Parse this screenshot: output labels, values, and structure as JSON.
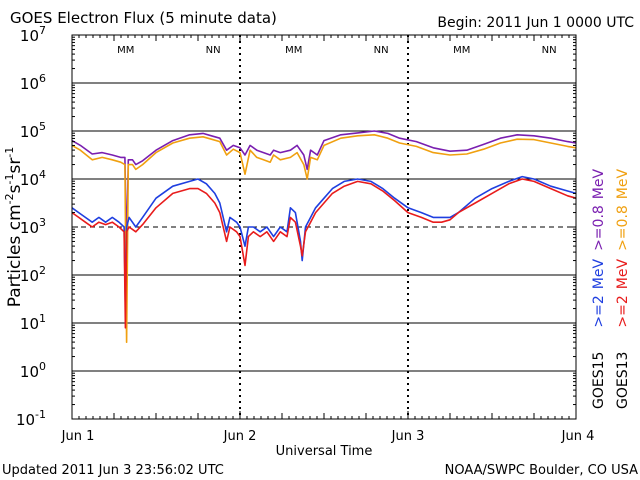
{
  "chart_data": {
    "type": "line",
    "title": "GOES Electron Flux (5 minute data)",
    "begin_label": "Begin: 2011 Jun 1 0000 UTC",
    "xlabel": "Universal Time",
    "ylabel": "Particles cm-2s-1sr-1",
    "ylabel_parts": [
      "Particles cm",
      "-2",
      "s",
      "-1",
      "sr",
      "-1"
    ],
    "updated": "Updated 2011 Jun  3 23:56:02 UTC",
    "credit": "NOAA/SWPC Boulder, CO USA",
    "x_unit": "days since 2011 Jun 1 00:00 UTC",
    "xlim": [
      0,
      3
    ],
    "ylim_log10": [
      -1,
      7
    ],
    "y_ticks": [
      {
        "exp": 7,
        "base": "10",
        "sup": "7"
      },
      {
        "exp": 6,
        "base": "10",
        "sup": "6"
      },
      {
        "exp": 5,
        "base": "10",
        "sup": "5"
      },
      {
        "exp": 4,
        "base": "10",
        "sup": "4"
      },
      {
        "exp": 3,
        "base": "10",
        "sup": "3"
      },
      {
        "exp": 2,
        "base": "10",
        "sup": "2"
      },
      {
        "exp": 1,
        "base": "10",
        "sup": "1"
      },
      {
        "exp": 0,
        "base": "10",
        "sup": "0"
      },
      {
        "exp": -1,
        "base": "10",
        "sup": "-1"
      }
    ],
    "x_ticks": [
      {
        "x": 0,
        "label": "Jun 1"
      },
      {
        "x": 1,
        "label": "Jun 2"
      },
      {
        "x": 2,
        "label": "Jun 3"
      },
      {
        "x": 3,
        "label": "Jun 4"
      }
    ],
    "threshold_log10": 3,
    "mn_markers": [
      {
        "x": 0.32,
        "label": "MM"
      },
      {
        "x": 0.84,
        "label": "NN"
      },
      {
        "x": 1.32,
        "label": "MM"
      },
      {
        "x": 1.84,
        "label": "NN"
      },
      {
        "x": 2.32,
        "label": "MM"
      },
      {
        "x": 2.84,
        "label": "NN"
      }
    ],
    "legend": [
      {
        "satellite": "GOES15",
        "g1": ">=2",
        "g2": ">=0.8",
        "unit": "MeV",
        "c1": "#1f3fe0",
        "c2": "#7a1fb0"
      },
      {
        "satellite": "GOES13",
        "g1": ">=2",
        "g2": ">=0.8",
        "unit": "MeV",
        "c1": "#e81c1c",
        "c2": "#f0a010"
      }
    ],
    "colors": {
      "goes15_ge2": "#1f3fe0",
      "goes13_ge2": "#e81c1c",
      "goes15_ge08": "#7a1fb0",
      "goes13_ge08": "#f0a010",
      "mm": "#3333cc",
      "nn": "#cc2222"
    },
    "series": [
      {
        "name": "GOES15 >=0.8 MeV",
        "color": "#7a1fb0",
        "points": [
          [
            0,
            4.8
          ],
          [
            0.05,
            4.7
          ],
          [
            0.12,
            4.52
          ],
          [
            0.18,
            4.55
          ],
          [
            0.24,
            4.5
          ],
          [
            0.29,
            4.45
          ],
          [
            0.315,
            4.45
          ],
          [
            0.325,
            2.5
          ],
          [
            0.335,
            4.4
          ],
          [
            0.36,
            4.4
          ],
          [
            0.38,
            4.3
          ],
          [
            0.42,
            4.38
          ],
          [
            0.5,
            4.6
          ],
          [
            0.6,
            4.8
          ],
          [
            0.7,
            4.92
          ],
          [
            0.78,
            4.95
          ],
          [
            0.83,
            4.9
          ],
          [
            0.88,
            4.85
          ],
          [
            0.92,
            4.6
          ],
          [
            0.96,
            4.7
          ],
          [
            1.0,
            4.65
          ],
          [
            1.03,
            4.5
          ],
          [
            1.06,
            4.7
          ],
          [
            1.1,
            4.6
          ],
          [
            1.14,
            4.55
          ],
          [
            1.18,
            4.5
          ],
          [
            1.2,
            4.6
          ],
          [
            1.24,
            4.55
          ],
          [
            1.3,
            4.6
          ],
          [
            1.34,
            4.7
          ],
          [
            1.38,
            4.5
          ],
          [
            1.4,
            4.2
          ],
          [
            1.42,
            4.6
          ],
          [
            1.46,
            4.5
          ],
          [
            1.5,
            4.8
          ],
          [
            1.6,
            4.92
          ],
          [
            1.7,
            4.96
          ],
          [
            1.8,
            5.0
          ],
          [
            1.88,
            4.95
          ],
          [
            1.95,
            4.85
          ],
          [
            2.05,
            4.78
          ],
          [
            2.15,
            4.65
          ],
          [
            2.25,
            4.58
          ],
          [
            2.35,
            4.6
          ],
          [
            2.45,
            4.72
          ],
          [
            2.55,
            4.85
          ],
          [
            2.65,
            4.92
          ],
          [
            2.75,
            4.9
          ],
          [
            2.85,
            4.85
          ],
          [
            2.95,
            4.78
          ],
          [
            3.0,
            4.75
          ]
        ]
      },
      {
        "name": "GOES13 >=0.8 MeV",
        "color": "#f0a010",
        "points": [
          [
            0,
            4.7
          ],
          [
            0.05,
            4.6
          ],
          [
            0.12,
            4.4
          ],
          [
            0.18,
            4.45
          ],
          [
            0.24,
            4.4
          ],
          [
            0.29,
            4.35
          ],
          [
            0.315,
            4.3
          ],
          [
            0.325,
            0.6
          ],
          [
            0.335,
            4.3
          ],
          [
            0.36,
            4.3
          ],
          [
            0.38,
            4.2
          ],
          [
            0.42,
            4.3
          ],
          [
            0.5,
            4.55
          ],
          [
            0.6,
            4.75
          ],
          [
            0.7,
            4.85
          ],
          [
            0.78,
            4.88
          ],
          [
            0.83,
            4.83
          ],
          [
            0.88,
            4.78
          ],
          [
            0.92,
            4.5
          ],
          [
            0.96,
            4.62
          ],
          [
            1.0,
            4.55
          ],
          [
            1.03,
            4.1
          ],
          [
            1.06,
            4.6
          ],
          [
            1.1,
            4.45
          ],
          [
            1.14,
            4.4
          ],
          [
            1.18,
            4.35
          ],
          [
            1.2,
            4.5
          ],
          [
            1.24,
            4.4
          ],
          [
            1.3,
            4.45
          ],
          [
            1.34,
            4.55
          ],
          [
            1.38,
            4.3
          ],
          [
            1.4,
            4.0
          ],
          [
            1.42,
            4.45
          ],
          [
            1.46,
            4.4
          ],
          [
            1.5,
            4.7
          ],
          [
            1.6,
            4.85
          ],
          [
            1.7,
            4.9
          ],
          [
            1.8,
            4.92
          ],
          [
            1.88,
            4.85
          ],
          [
            1.95,
            4.75
          ],
          [
            2.05,
            4.68
          ],
          [
            2.15,
            4.55
          ],
          [
            2.25,
            4.5
          ],
          [
            2.35,
            4.52
          ],
          [
            2.45,
            4.62
          ],
          [
            2.55,
            4.75
          ],
          [
            2.65,
            4.83
          ],
          [
            2.75,
            4.82
          ],
          [
            2.85,
            4.75
          ],
          [
            2.95,
            4.68
          ],
          [
            3.0,
            4.65
          ]
        ]
      },
      {
        "name": "GOES15 >=2 MeV",
        "color": "#1f3fe0",
        "points": [
          [
            0,
            3.4
          ],
          [
            0.04,
            3.3
          ],
          [
            0.08,
            3.2
          ],
          [
            0.12,
            3.1
          ],
          [
            0.16,
            3.2
          ],
          [
            0.2,
            3.1
          ],
          [
            0.24,
            3.2
          ],
          [
            0.28,
            3.1
          ],
          [
            0.31,
            3.0
          ],
          [
            0.318,
            1.3
          ],
          [
            0.325,
            3.0
          ],
          [
            0.34,
            3.2
          ],
          [
            0.38,
            3.0
          ],
          [
            0.42,
            3.2
          ],
          [
            0.5,
            3.6
          ],
          [
            0.6,
            3.85
          ],
          [
            0.7,
            3.95
          ],
          [
            0.75,
            4.0
          ],
          [
            0.8,
            3.9
          ],
          [
            0.85,
            3.7
          ],
          [
            0.88,
            3.5
          ],
          [
            0.9,
            3.2
          ],
          [
            0.92,
            2.9
          ],
          [
            0.94,
            3.2
          ],
          [
            0.98,
            3.1
          ],
          [
            1.0,
            3.0
          ],
          [
            1.03,
            2.6
          ],
          [
            1.05,
            3.0
          ],
          [
            1.08,
            3.0
          ],
          [
            1.12,
            2.9
          ],
          [
            1.16,
            3.0
          ],
          [
            1.2,
            2.8
          ],
          [
            1.24,
            3.0
          ],
          [
            1.28,
            2.9
          ],
          [
            1.3,
            3.4
          ],
          [
            1.33,
            3.3
          ],
          [
            1.36,
            2.7
          ],
          [
            1.37,
            2.3
          ],
          [
            1.39,
            3.0
          ],
          [
            1.42,
            3.2
          ],
          [
            1.45,
            3.4
          ],
          [
            1.5,
            3.6
          ],
          [
            1.55,
            3.8
          ],
          [
            1.62,
            3.95
          ],
          [
            1.7,
            4.0
          ],
          [
            1.78,
            3.95
          ],
          [
            1.85,
            3.8
          ],
          [
            1.92,
            3.6
          ],
          [
            2.0,
            3.4
          ],
          [
            2.08,
            3.3
          ],
          [
            2.15,
            3.2
          ],
          [
            2.2,
            3.2
          ],
          [
            2.25,
            3.2
          ],
          [
            2.3,
            3.3
          ],
          [
            2.4,
            3.6
          ],
          [
            2.5,
            3.8
          ],
          [
            2.6,
            3.95
          ],
          [
            2.68,
            4.05
          ],
          [
            2.75,
            4.0
          ],
          [
            2.85,
            3.85
          ],
          [
            2.95,
            3.75
          ],
          [
            3.0,
            3.7
          ]
        ]
      },
      {
        "name": "GOES13 >=2 MeV",
        "color": "#e81c1c",
        "points": [
          [
            0,
            3.3
          ],
          [
            0.04,
            3.2
          ],
          [
            0.08,
            3.1
          ],
          [
            0.12,
            3.0
          ],
          [
            0.16,
            3.1
          ],
          [
            0.2,
            3.05
          ],
          [
            0.24,
            3.1
          ],
          [
            0.28,
            3.0
          ],
          [
            0.31,
            2.9
          ],
          [
            0.318,
            0.9
          ],
          [
            0.325,
            2.9
          ],
          [
            0.34,
            3.0
          ],
          [
            0.38,
            2.9
          ],
          [
            0.42,
            3.05
          ],
          [
            0.5,
            3.4
          ],
          [
            0.6,
            3.7
          ],
          [
            0.7,
            3.8
          ],
          [
            0.75,
            3.8
          ],
          [
            0.8,
            3.7
          ],
          [
            0.85,
            3.5
          ],
          [
            0.88,
            3.3
          ],
          [
            0.9,
            3.0
          ],
          [
            0.92,
            2.7
          ],
          [
            0.94,
            3.0
          ],
          [
            0.98,
            2.9
          ],
          [
            1.0,
            2.8
          ],
          [
            1.03,
            2.2
          ],
          [
            1.05,
            2.8
          ],
          [
            1.08,
            2.9
          ],
          [
            1.12,
            2.8
          ],
          [
            1.16,
            2.9
          ],
          [
            1.2,
            2.7
          ],
          [
            1.24,
            2.9
          ],
          [
            1.28,
            2.8
          ],
          [
            1.3,
            3.2
          ],
          [
            1.33,
            3.1
          ],
          [
            1.36,
            2.6
          ],
          [
            1.37,
            2.4
          ],
          [
            1.39,
            2.9
          ],
          [
            1.42,
            3.1
          ],
          [
            1.45,
            3.3
          ],
          [
            1.5,
            3.5
          ],
          [
            1.55,
            3.7
          ],
          [
            1.62,
            3.85
          ],
          [
            1.7,
            3.95
          ],
          [
            1.78,
            3.9
          ],
          [
            1.85,
            3.75
          ],
          [
            1.92,
            3.55
          ],
          [
            2.0,
            3.3
          ],
          [
            2.08,
            3.2
          ],
          [
            2.15,
            3.1
          ],
          [
            2.2,
            3.1
          ],
          [
            2.25,
            3.15
          ],
          [
            2.3,
            3.3
          ],
          [
            2.4,
            3.5
          ],
          [
            2.5,
            3.7
          ],
          [
            2.6,
            3.9
          ],
          [
            2.68,
            4.0
          ],
          [
            2.75,
            3.95
          ],
          [
            2.85,
            3.8
          ],
          [
            2.95,
            3.65
          ],
          [
            3.0,
            3.6
          ]
        ]
      }
    ]
  }
}
